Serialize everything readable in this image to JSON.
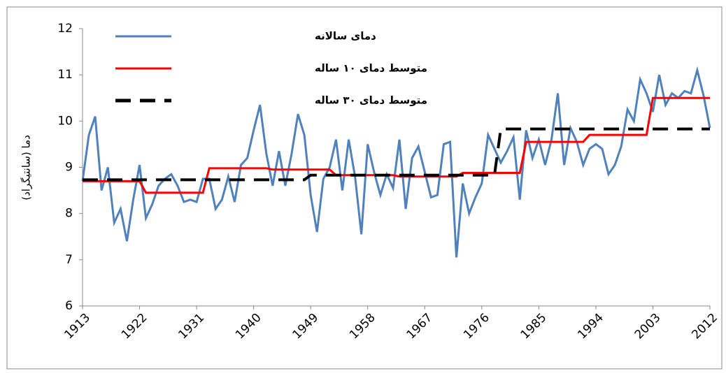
{
  "chart_data": {
    "type": "line",
    "y_label": "دما (سانتیگراد)",
    "x": [
      1913,
      1914,
      1915,
      1916,
      1917,
      1918,
      1919,
      1920,
      1921,
      1922,
      1923,
      1924,
      1925,
      1926,
      1927,
      1928,
      1929,
      1930,
      1931,
      1932,
      1933,
      1934,
      1935,
      1936,
      1937,
      1938,
      1939,
      1940,
      1941,
      1942,
      1943,
      1944,
      1945,
      1946,
      1947,
      1948,
      1949,
      1950,
      1951,
      1952,
      1953,
      1954,
      1955,
      1956,
      1957,
      1958,
      1959,
      1960,
      1961,
      1962,
      1963,
      1964,
      1965,
      1966,
      1967,
      1968,
      1969,
      1970,
      1971,
      1972,
      1973,
      1974,
      1975,
      1976,
      1977,
      1978,
      1979,
      1980,
      1981,
      1982,
      1983,
      1984,
      1985,
      1986,
      1987,
      1988,
      1989,
      1990,
      1991,
      1992,
      1993,
      1994,
      1995,
      1996,
      1997,
      1998,
      1999,
      2000,
      2001,
      2002,
      2003,
      2004,
      2005,
      2006,
      2007,
      2008,
      2009,
      2010,
      2011,
      2012
    ],
    "series": [
      {
        "name": "دمای سالانه",
        "color": "#4f81bd",
        "dash": false,
        "values": [
          8.7,
          9.7,
          10.1,
          8.5,
          9.0,
          7.8,
          8.1,
          7.4,
          8.3,
          9.05,
          7.9,
          8.2,
          8.6,
          8.75,
          8.85,
          8.6,
          8.25,
          8.3,
          8.25,
          8.75,
          8.75,
          8.1,
          8.3,
          8.8,
          8.25,
          9.05,
          9.2,
          9.8,
          10.35,
          9.3,
          8.6,
          9.35,
          8.6,
          9.3,
          10.15,
          9.7,
          8.4,
          7.6,
          8.75,
          9.0,
          9.6,
          8.5,
          9.6,
          8.8,
          7.55,
          9.5,
          8.9,
          8.4,
          8.85,
          8.55,
          9.6,
          8.1,
          9.2,
          9.45,
          8.9,
          8.35,
          8.4,
          9.5,
          9.55,
          7.05,
          8.65,
          8.0,
          8.35,
          8.65,
          9.7,
          9.4,
          9.1,
          9.35,
          9.65,
          8.3,
          9.8,
          9.2,
          9.6,
          9.05,
          9.6,
          10.6,
          9.05,
          9.85,
          9.55,
          9.05,
          9.4,
          9.5,
          9.4,
          8.85,
          9.05,
          9.45,
          10.25,
          10.0,
          10.9,
          10.6,
          10.2,
          11.0,
          10.35,
          10.6,
          10.5,
          10.65,
          10.6,
          11.1,
          10.55,
          9.85
        ]
      },
      {
        "name": "متوسط دمای ۱۰ ساله",
        "color": "#ff0000",
        "dash": false,
        "values": [
          8.7,
          8.7,
          8.7,
          8.7,
          8.7,
          8.7,
          8.7,
          8.7,
          8.7,
          8.7,
          8.45,
          8.45,
          8.45,
          8.45,
          8.45,
          8.45,
          8.45,
          8.45,
          8.45,
          8.45,
          8.98,
          8.98,
          8.98,
          8.98,
          8.98,
          8.98,
          8.98,
          8.98,
          8.98,
          8.98,
          8.95,
          8.95,
          8.95,
          8.95,
          8.95,
          8.95,
          8.95,
          8.95,
          8.95,
          8.95,
          8.83,
          8.83,
          8.83,
          8.83,
          8.83,
          8.83,
          8.83,
          8.83,
          8.83,
          8.83,
          8.8,
          8.8,
          8.8,
          8.8,
          8.8,
          8.8,
          8.8,
          8.8,
          8.8,
          8.8,
          8.88,
          8.88,
          8.88,
          8.88,
          8.88,
          8.88,
          8.88,
          8.88,
          8.88,
          8.88,
          9.55,
          9.55,
          9.55,
          9.55,
          9.55,
          9.55,
          9.55,
          9.55,
          9.55,
          9.55,
          9.7,
          9.7,
          9.7,
          9.7,
          9.7,
          9.7,
          9.7,
          9.7,
          9.7,
          9.7,
          10.5,
          10.5,
          10.5,
          10.5,
          10.5,
          10.5,
          10.5,
          10.5,
          10.5,
          10.5
        ]
      },
      {
        "name": "متوسط دمای ۳۰ ساله",
        "color": "#000000",
        "dash": true,
        "values": [
          8.73,
          8.73,
          8.73,
          8.73,
          8.73,
          8.73,
          8.73,
          8.73,
          8.73,
          8.73,
          8.73,
          8.73,
          8.73,
          8.73,
          8.73,
          8.73,
          8.73,
          8.73,
          8.73,
          8.73,
          8.73,
          8.73,
          8.73,
          8.73,
          8.73,
          8.73,
          8.73,
          8.73,
          8.73,
          8.73,
          8.73,
          8.73,
          8.73,
          8.73,
          8.73,
          8.73,
          8.83,
          8.83,
          8.83,
          8.83,
          8.83,
          8.83,
          8.83,
          8.83,
          8.83,
          8.83,
          8.83,
          8.83,
          8.83,
          8.83,
          8.83,
          8.83,
          8.83,
          8.83,
          8.83,
          8.83,
          8.83,
          8.83,
          8.83,
          8.83,
          8.83,
          8.83,
          8.83,
          8.83,
          8.83,
          8.83,
          9.83,
          9.83,
          9.83,
          9.83,
          9.83,
          9.83,
          9.83,
          9.83,
          9.83,
          9.83,
          9.83,
          9.83,
          9.83,
          9.83,
          9.83,
          9.83,
          9.83,
          9.83,
          9.83,
          9.83,
          9.83,
          9.83,
          9.83,
          9.83,
          9.83,
          9.83,
          9.83,
          9.83,
          9.83,
          9.83,
          9.83,
          9.83,
          9.83,
          9.83
        ]
      }
    ],
    "xlim": [
      1913,
      2012
    ],
    "xticks": [
      1913,
      1922,
      1931,
      1940,
      1949,
      1958,
      1967,
      1976,
      1985,
      1994,
      2003,
      2012
    ],
    "ylim": [
      6,
      12
    ],
    "yticks": [
      6,
      7,
      8,
      9,
      10,
      11,
      12
    ],
    "grid": false,
    "legend": "top-left"
  }
}
